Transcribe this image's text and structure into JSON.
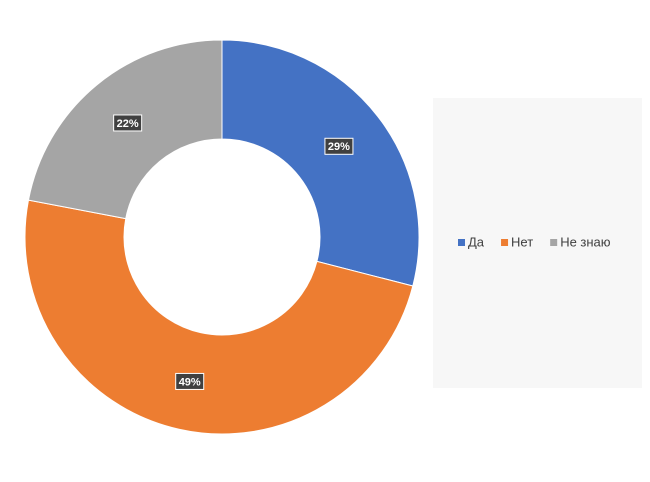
{
  "chart_data": {
    "type": "donut",
    "categories": [
      "Да",
      "Нет",
      "Не знаю"
    ],
    "values": [
      29,
      49,
      22
    ],
    "value_labels": [
      "29%",
      "49%",
      "22%"
    ],
    "colors": [
      "#4472c4",
      "#ed7d31",
      "#a5a5a5"
    ],
    "legend": "right"
  }
}
